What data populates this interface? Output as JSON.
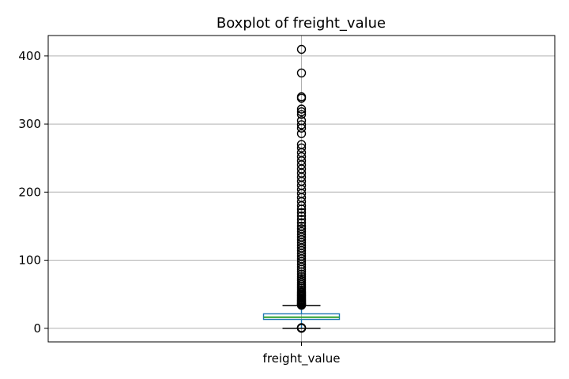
{
  "chart_data": {
    "type": "boxplot",
    "title": "Boxplot of freight_value",
    "xlabel": "",
    "ylabel": "",
    "categories": [
      "freight_value"
    ],
    "ylim": [
      -20,
      430
    ],
    "yticks": [
      0,
      100,
      200,
      300,
      400
    ],
    "grid": true,
    "stats": {
      "whislo": 0,
      "q1": 13.0,
      "median": 16.3,
      "q3": 21.2,
      "whishi": 33.5
    },
    "fliers": [
      0.0,
      0.2,
      0.5,
      1.0,
      33.8,
      34.5,
      35.2,
      36.1,
      37.0,
      38.2,
      39.5,
      40.8,
      42.0,
      43.5,
      45.0,
      46.8,
      48.5,
      50.2,
      52.0,
      54.0,
      56.5,
      59.0,
      61.5,
      64.0,
      67.0,
      70.0,
      73.0,
      76.0,
      79.5,
      83.0,
      86.5,
      90.0,
      94.0,
      98.0,
      102.0,
      106.0,
      110.0,
      114.0,
      118.0,
      122.0,
      126.0,
      130.0,
      134.0,
      138.0,
      142.0,
      146.0,
      150.0,
      155.0,
      160.0,
      165.0,
      170.0,
      175.0,
      180.0,
      186.0,
      192.0,
      198.0,
      204.0,
      210.0,
      216.0,
      222.0,
      228.0,
      234.0,
      240.0,
      246.0,
      252.0,
      258.0,
      265.0,
      270.0,
      286.0,
      294.0,
      299.0,
      305.0,
      314.0,
      318.0,
      322.0,
      338.0,
      340.0,
      375.0,
      409.7
    ]
  }
}
